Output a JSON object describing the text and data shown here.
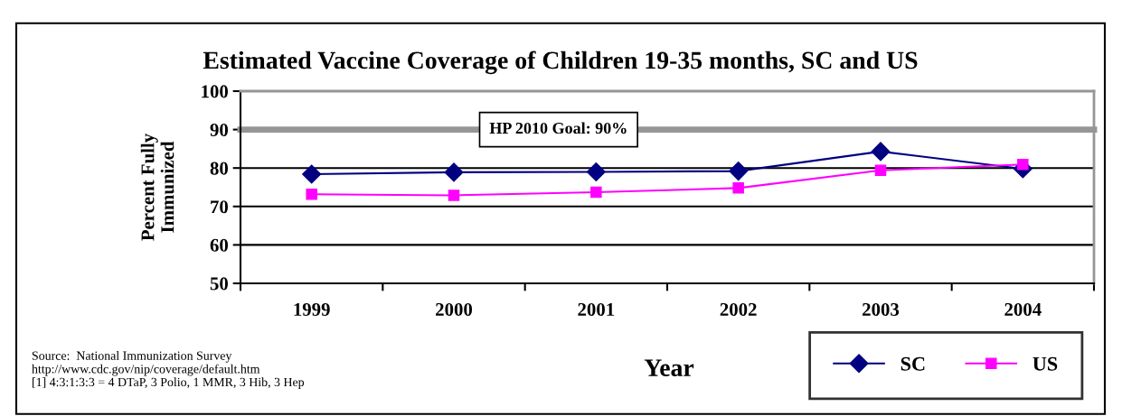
{
  "chart_data": {
    "type": "line",
    "title": "Estimated Vaccine Coverage of Children 19-35 months, SC and US",
    "xlabel": "Year",
    "ylabel": "Percent Fully\nImmunized",
    "categories": [
      "1999",
      "2000",
      "2001",
      "2002",
      "2003",
      "2004"
    ],
    "series": [
      {
        "name": "SC",
        "color": "#000080",
        "marker": "diamond",
        "values": [
          78.4,
          78.9,
          79.0,
          79.2,
          84.3,
          79.8
        ]
      },
      {
        "name": "US",
        "color": "#ff00ff",
        "marker": "square",
        "values": [
          73.2,
          72.9,
          73.7,
          74.8,
          79.4,
          80.9
        ]
      }
    ],
    "ylim": [
      50,
      100
    ],
    "yticks": [
      50,
      60,
      70,
      80,
      90,
      100
    ],
    "grid": "y",
    "legend": "bottom right",
    "line_style": "solid",
    "ref_lines": [
      {
        "axis": "y",
        "value": 90,
        "label": "HP 2010 Goal: 90%",
        "color": "#969696"
      }
    ],
    "annotations": [
      "Source:  National Immunization Survey\nhttp://www.cdc.gov/nip/coverage/default.htm\n[1] 4:3:1:3:3 = 4 DTaP, 3 Polio, 1 MMR, 3 Hib, 3 Hep"
    ]
  }
}
